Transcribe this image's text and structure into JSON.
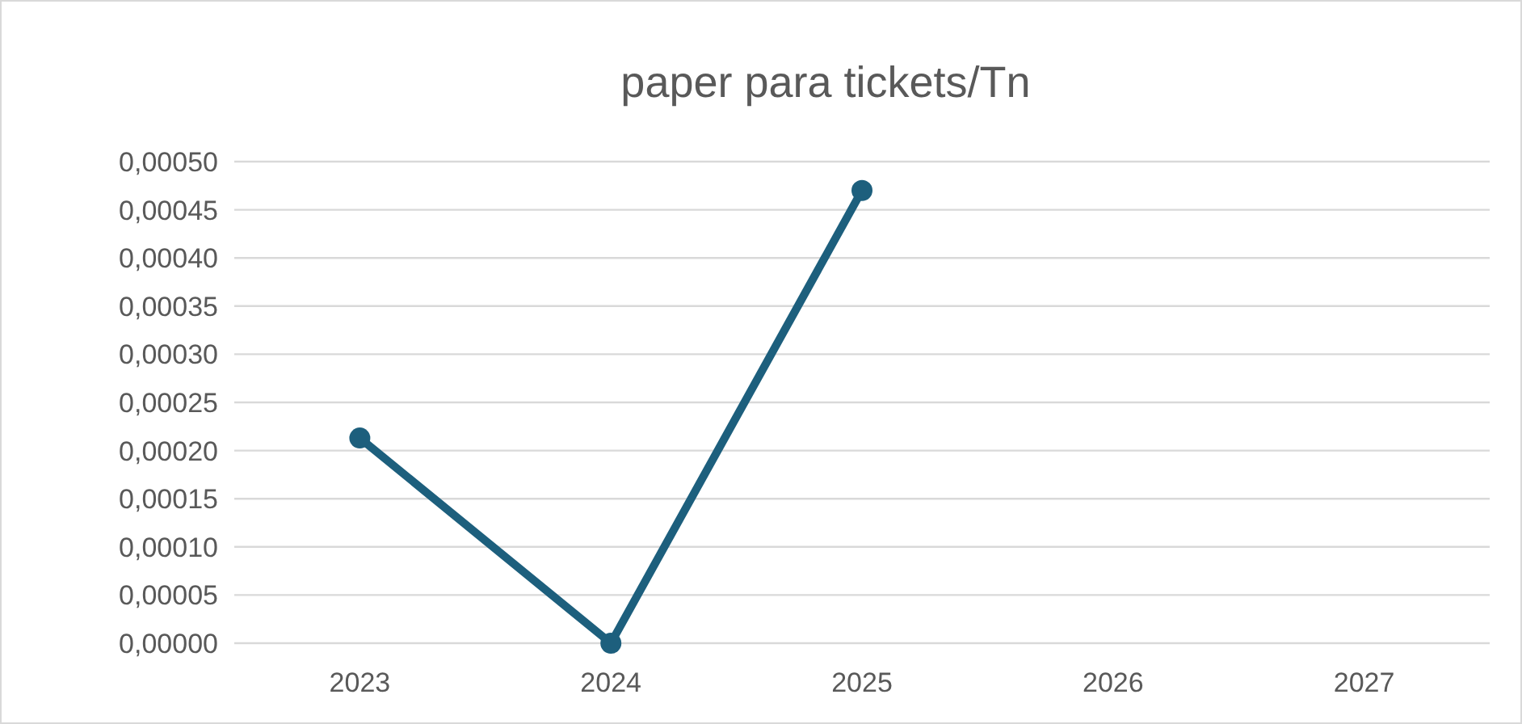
{
  "chart_data": {
    "type": "line",
    "title": "paper para tickets/Tn",
    "categories": [
      "2023",
      "2024",
      "2025",
      "2026",
      "2027"
    ],
    "series": [
      {
        "color": "#1d5f7d",
        "values": [
          0.000213,
          0,
          0.00047,
          null,
          null
        ]
      }
    ],
    "ylim": [
      0,
      0.0005
    ],
    "yticks": [
      {
        "value": 0,
        "label": "0,00000"
      },
      {
        "value": 5e-05,
        "label": "0,00005"
      },
      {
        "value": 0.0001,
        "label": "0,00010"
      },
      {
        "value": 0.00015,
        "label": "0,00015"
      },
      {
        "value": 0.0002,
        "label": "0,00020"
      },
      {
        "value": 0.00025,
        "label": "0,00025"
      },
      {
        "value": 0.0003,
        "label": "0,00030"
      },
      {
        "value": 0.00035,
        "label": "0,00035"
      },
      {
        "value": 0.0004,
        "label": "0,00040"
      },
      {
        "value": 0.00045,
        "label": "0,00045"
      },
      {
        "value": 0.0005,
        "label": "0,00050"
      }
    ],
    "grid": "y",
    "marker": "circle",
    "line_style": "solid"
  }
}
